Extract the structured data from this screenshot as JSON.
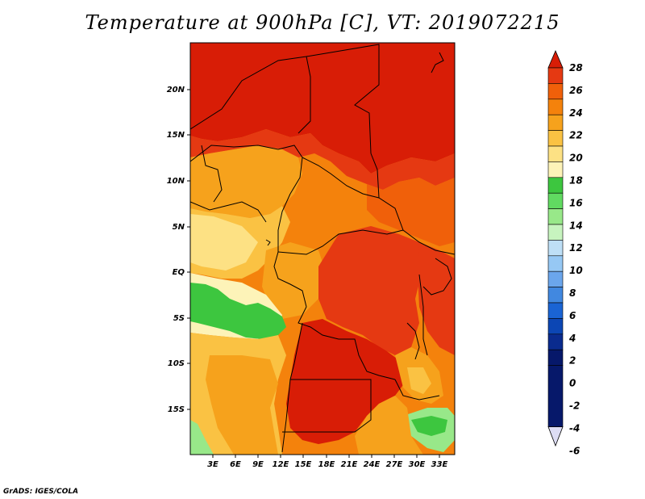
{
  "title": "Temperature at 900hPa [C], VT: 2019072215",
  "credit": "GrADS: IGES/COLA",
  "map": {
    "lon_range": [
      -1,
      34
    ],
    "lat_range": [
      -21,
      25
    ],
    "lon_ticks": [
      "3E",
      "6E",
      "9E",
      "12E",
      "15E",
      "18E",
      "21E",
      "24E",
      "27E",
      "30E",
      "33E"
    ],
    "lat_ticks": [
      "20N",
      "15N",
      "10N",
      "5N",
      "EQ",
      "5S",
      "10S",
      "15S"
    ]
  },
  "colorbar": {
    "levels": [
      "28",
      "26",
      "24",
      "22",
      "20",
      "18",
      "16",
      "14",
      "12",
      "10",
      "8",
      "6",
      "4",
      "2",
      "0",
      "-2",
      "-4",
      "-6"
    ],
    "colors": [
      "#d81d06",
      "#e53912",
      "#f0600a",
      "#f4820c",
      "#f6a21c",
      "#fac243",
      "#fde184",
      "#fdf3b8",
      "#3dc63f",
      "#61da61",
      "#98e889",
      "#c7f4bf",
      "#bedff6",
      "#96c8f4",
      "#6ba6ec",
      "#4188e0",
      "#1a64d4",
      "#0c46b4",
      "#0a2b8e",
      "#06186a",
      "#ddddf4"
    ]
  },
  "colors": {
    "hot": "#d81d06",
    "warm": "#f0600a",
    "mild": "#f6a21c",
    "cool": "#fde184",
    "green": "#3dc63f",
    "border": "#000000"
  }
}
